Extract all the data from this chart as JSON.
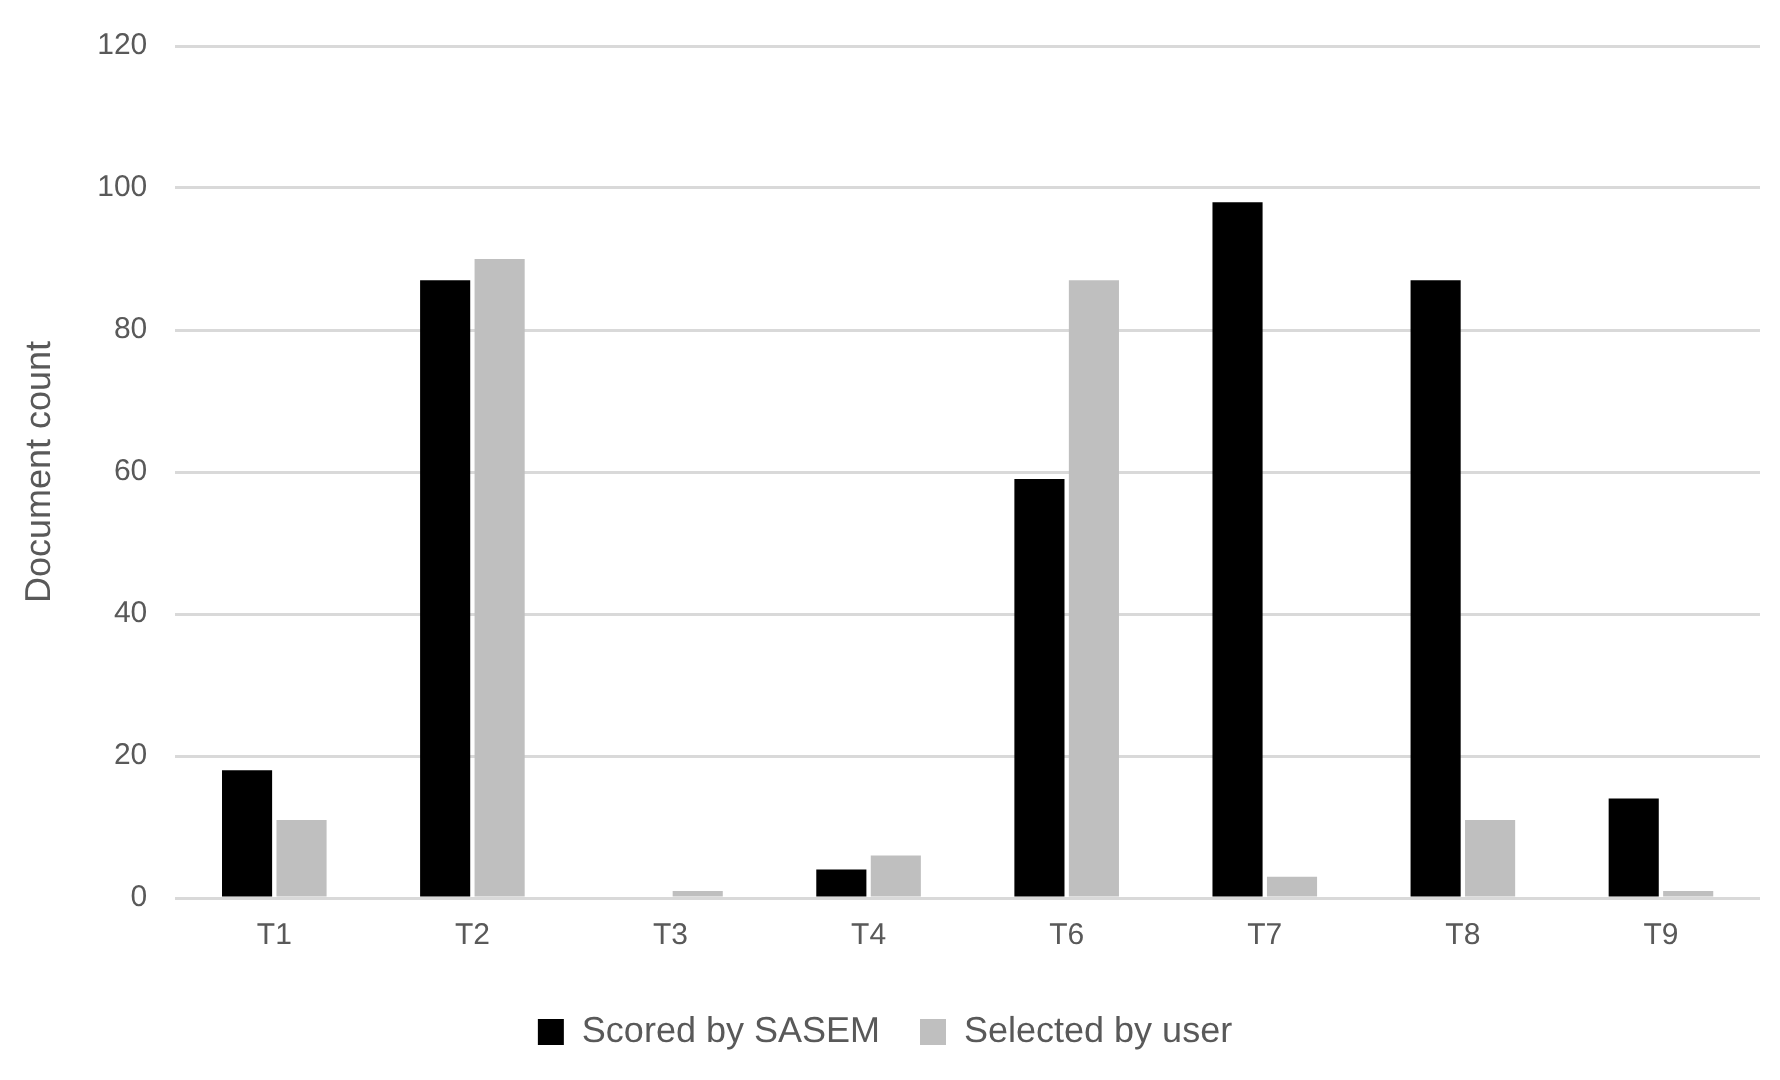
{
  "chart_data": {
    "type": "bar",
    "ylabel": "Document count",
    "categories": [
      "T1",
      "T2",
      "T3",
      "T4",
      "T6",
      "T7",
      "T8",
      "T9"
    ],
    "series": [
      {
        "name": "Scored by SASEM",
        "color": "#000000",
        "values": [
          18,
          87,
          0,
          4,
          59,
          98,
          87,
          14
        ]
      },
      {
        "name": "Selected by user",
        "color": "#bfbfbf",
        "values": [
          11,
          90,
          1,
          6,
          87,
          3,
          11,
          1
        ]
      }
    ],
    "ylim": [
      0,
      120
    ],
    "yticks": [
      0,
      20,
      40,
      60,
      80,
      100,
      120
    ],
    "grid": "y",
    "legend": "bottom"
  }
}
